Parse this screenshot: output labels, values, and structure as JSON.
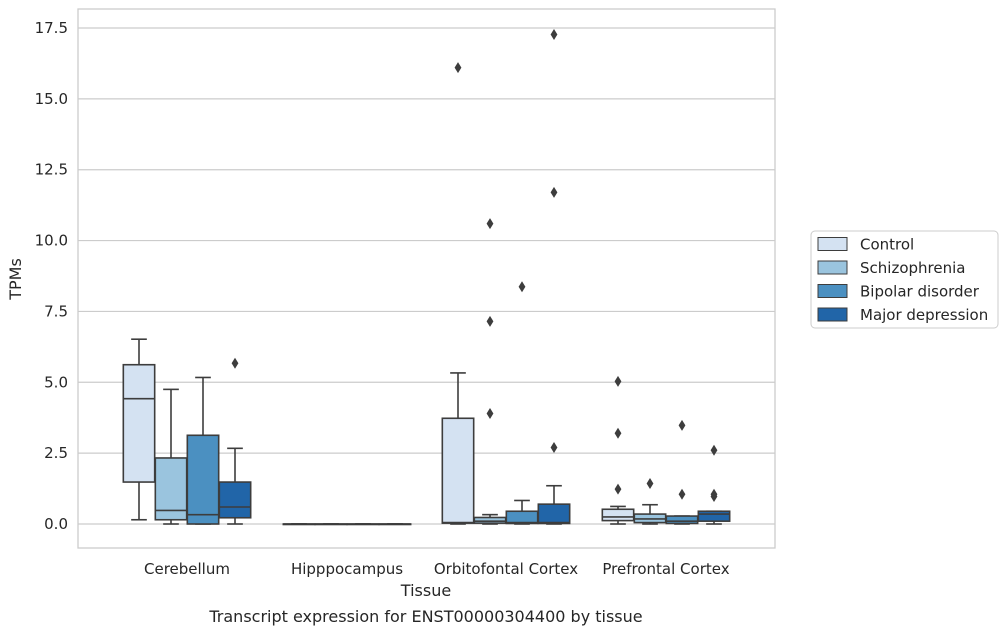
{
  "chart_data": {
    "type": "box",
    "xlabel": "Tissue",
    "ylabel": "TPMs",
    "caption": "Transcript expression for ENST00000304400 by tissue",
    "ylim": [
      -0.85,
      18.1
    ],
    "yticks": [
      0.0,
      2.5,
      5.0,
      7.5,
      10.0,
      12.5,
      15.0,
      17.5
    ],
    "ytick_labels": [
      "0.0",
      "2.5",
      "5.0",
      "7.5",
      "10.0",
      "12.5",
      "15.0",
      "17.5"
    ],
    "grid": "horizontal",
    "legend_position": "right",
    "categories": [
      "Cerebellum",
      "Hipppocampus",
      "Orbitofontal Cortex",
      "Prefrontal Cortex"
    ],
    "series": [
      {
        "name": "Control",
        "color": "#d4e2f2",
        "boxes": [
          {
            "whisker_low": 0.15,
            "q1": 1.48,
            "median": 4.42,
            "q3": 5.62,
            "whisker_high": 6.52,
            "outliers": []
          },
          {
            "whisker_low": 0.0,
            "q1": 0.0,
            "median": 0.0,
            "q3": 0.0,
            "whisker_high": 0.0,
            "outliers": []
          },
          {
            "whisker_low": 0.0,
            "q1": 0.03,
            "median": 0.05,
            "q3": 3.73,
            "whisker_high": 5.33,
            "outliers": [
              16.1
            ]
          },
          {
            "whisker_low": 0.0,
            "q1": 0.12,
            "median": 0.25,
            "q3": 0.52,
            "whisker_high": 0.62,
            "outliers": [
              1.23,
              3.2,
              5.03
            ]
          }
        ]
      },
      {
        "name": "Schizophrenia",
        "color": "#9ac4de",
        "boxes": [
          {
            "whisker_low": 0.0,
            "q1": 0.15,
            "median": 0.48,
            "q3": 2.33,
            "whisker_high": 4.75,
            "outliers": []
          },
          {
            "whisker_low": 0.0,
            "q1": 0.0,
            "median": 0.0,
            "q3": 0.0,
            "whisker_high": 0.0,
            "outliers": []
          },
          {
            "whisker_low": 0.0,
            "q1": 0.03,
            "median": 0.1,
            "q3": 0.23,
            "whisker_high": 0.33,
            "outliers": [
              3.9,
              7.15,
              10.6
            ]
          },
          {
            "whisker_low": 0.0,
            "q1": 0.05,
            "median": 0.18,
            "q3": 0.35,
            "whisker_high": 0.68,
            "outliers": [
              1.43
            ]
          }
        ]
      },
      {
        "name": "Bipolar disorder",
        "color": "#4b90c1",
        "boxes": [
          {
            "whisker_low": 0.0,
            "q1": 0.0,
            "median": 0.33,
            "q3": 3.13,
            "whisker_high": 5.17,
            "outliers": []
          },
          {
            "whisker_low": 0.0,
            "q1": 0.0,
            "median": 0.0,
            "q3": 0.0,
            "whisker_high": 0.0,
            "outliers": []
          },
          {
            "whisker_low": 0.0,
            "q1": 0.02,
            "median": 0.05,
            "q3": 0.45,
            "whisker_high": 0.83,
            "outliers": [
              8.37
            ]
          },
          {
            "whisker_low": 0.0,
            "q1": 0.02,
            "median": 0.1,
            "q3": 0.28,
            "whisker_high": 0.28,
            "outliers": [
              1.05,
              3.48
            ]
          }
        ]
      },
      {
        "name": "Major depression",
        "color": "#2165a8",
        "boxes": [
          {
            "whisker_low": 0.0,
            "q1": 0.22,
            "median": 0.6,
            "q3": 1.48,
            "whisker_high": 2.67,
            "outliers": [
              5.67
            ]
          },
          {
            "whisker_low": 0.0,
            "q1": 0.0,
            "median": 0.0,
            "q3": 0.0,
            "whisker_high": 0.0,
            "outliers": []
          },
          {
            "whisker_low": 0.0,
            "q1": 0.02,
            "median": 0.05,
            "q3": 0.7,
            "whisker_high": 1.35,
            "outliers": [
              2.7,
              11.7,
              17.27
            ]
          },
          {
            "whisker_low": 0.0,
            "q1": 0.1,
            "median": 0.35,
            "q3": 0.45,
            "whisker_high": 0.45,
            "outliers": [
              0.97,
              1.05,
              2.6
            ]
          }
        ]
      }
    ]
  }
}
